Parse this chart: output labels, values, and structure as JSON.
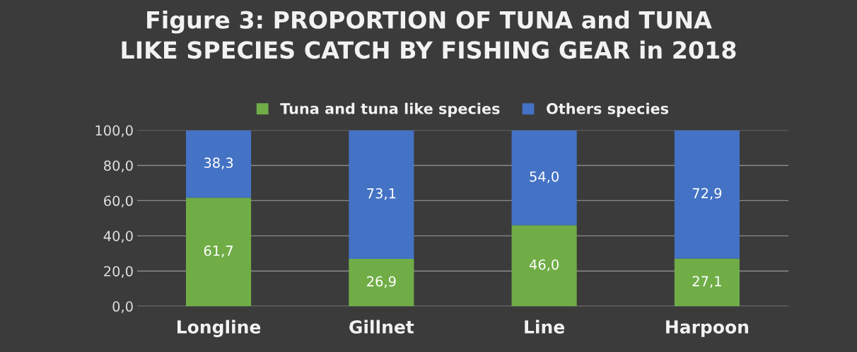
{
  "chart_data": {
    "type": "bar",
    "title": "Figure 3: PROPORTION OF TUNA and TUNA\nLIKE SPECIES CATCH BY FISHING GEAR in 2018",
    "categories": [
      "Longline",
      "Gillnet",
      "Line",
      "Harpoon"
    ],
    "stacked": true,
    "series": [
      {
        "name": "Tuna and tuna like species",
        "color": "#70ad47",
        "values": [
          61.7,
          26.9,
          46.0,
          27.1
        ],
        "value_labels": [
          "61,7",
          "26,9",
          "46,0",
          "27,1"
        ]
      },
      {
        "name": "Others species",
        "color": "#4472c4",
        "values": [
          38.3,
          73.1,
          54.0,
          72.9
        ],
        "value_labels": [
          "38,3",
          "73,1",
          "54,0",
          "72,9"
        ]
      }
    ],
    "ylim": [
      0,
      100
    ],
    "yticks": [
      {
        "value": 0,
        "label": "0,0"
      },
      {
        "value": 20,
        "label": "20,0"
      },
      {
        "value": 40,
        "label": "40,0"
      },
      {
        "value": 60,
        "label": "60,0"
      },
      {
        "value": 80,
        "label": "80,0"
      },
      {
        "value": 100,
        "label": "100,0"
      }
    ],
    "grid": "y",
    "legend": "top"
  }
}
